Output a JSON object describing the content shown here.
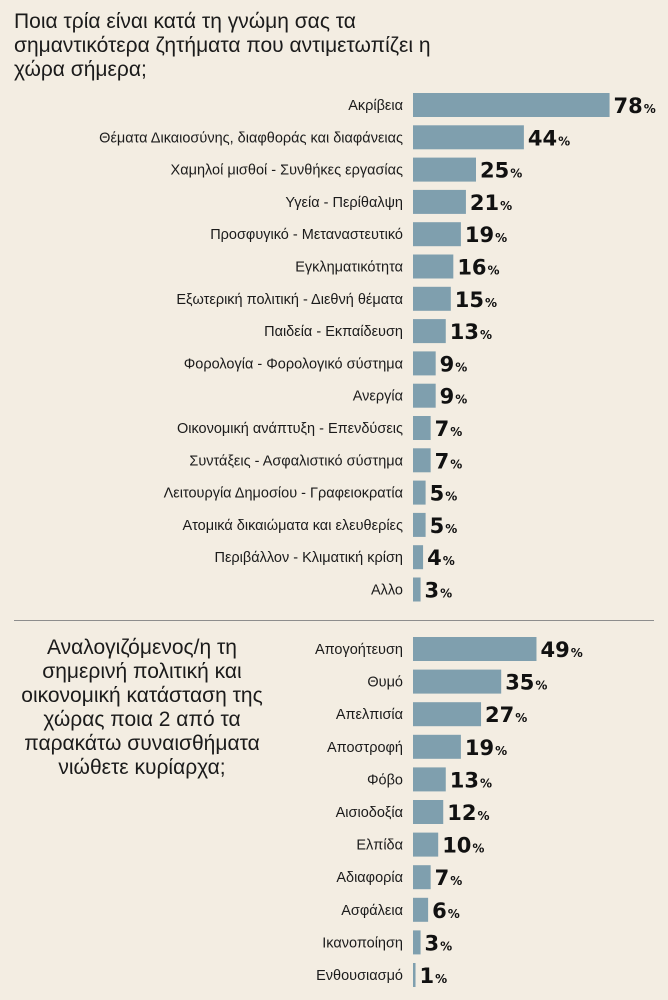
{
  "chart_data": [
    {
      "type": "bar",
      "orientation": "horizontal",
      "title": "Ποια τρία είναι κατά τη γνώμη σας τα σημαντικότερα ζητήματα που αντιμετωπίζει η χώρα σήμερα;",
      "unit": "%",
      "bar_color": "#7f9fae",
      "categories": [
        "Ακρίβεια",
        "Θέματα Δικαιοσύνης, διαφθοράς και διαφάνειας",
        "Χαμηλοί μισθοί - Συνθήκες εργασίας",
        "Υγεία - Περίθαλψη",
        "Προσφυγικό - Μεταναστευτικό",
        "Εγκληματικότητα",
        "Εξωτερική πολιτική - Διεθνή θέματα",
        "Παιδεία - Εκπαίδευση",
        "Φορολογία - Φορολογικό σύστημα",
        "Ανεργία",
        "Οικονομική ανάπτυξη - Επενδύσεις",
        "Συντάξεις - Ασφαλιστικό σύστημα",
        "Λειτουργία Δημοσίου - Γραφειοκρατία",
        "Ατομικά δικαιώματα και ελευθερίες",
        "Περιβάλλον - Κλιματική κρίση",
        "Αλλο"
      ],
      "values": [
        78,
        44,
        25,
        21,
        19,
        16,
        15,
        13,
        9,
        9,
        7,
        7,
        5,
        5,
        4,
        3
      ]
    },
    {
      "type": "bar",
      "orientation": "horizontal",
      "title": "Αναλογιζόμενος/η τη σημερινή πολιτική και οικονομική κατάσταση της χώρας ποια 2 από τα παρακάτω συναισθήματα νιώθετε κυρίαρχα;",
      "unit": "%",
      "bar_color": "#7f9fae",
      "categories": [
        "Απογοήτευση",
        "Θυμό",
        "Απελπισία",
        "Αποστροφή",
        "Φόβο",
        "Αισιοδοξία",
        "Ελπίδα",
        "Αδιαφορία",
        "Ασφάλεια",
        "Ικανοποίηση",
        "Ενθουσιασμό"
      ],
      "values": [
        49,
        35,
        27,
        19,
        13,
        12,
        10,
        7,
        6,
        3,
        1
      ]
    }
  ]
}
